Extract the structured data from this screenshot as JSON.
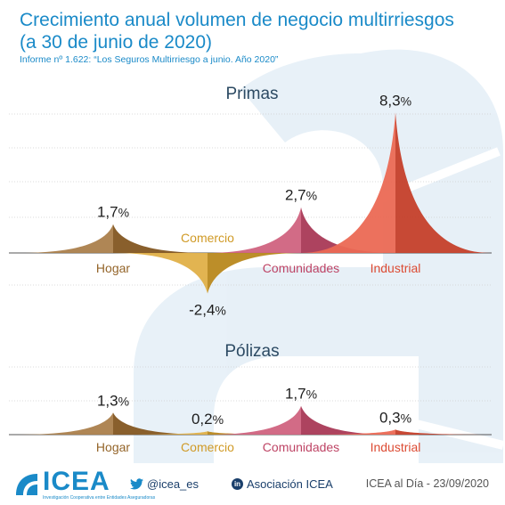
{
  "header": {
    "title_line1": "Crecimiento anual volumen de negocio multirriesgos",
    "title_line2": "(a 30 de junio de 2020)",
    "subtitle": "Informe nº 1.622: “Los Seguros Multirriesgo a junio. Año 2020”"
  },
  "chart_data": [
    {
      "type": "area",
      "title": "Primas",
      "unit": "%",
      "categories": [
        "Hogar",
        "Comercio",
        "Comunidades",
        "Industrial"
      ],
      "values": [
        1.7,
        -2.4,
        2.7,
        8.3
      ],
      "value_labels": [
        "1,7",
        "-2,4",
        "2,7",
        "8,3"
      ],
      "colors": [
        "#9c6a2c",
        "#dba228",
        "#c8486a",
        "#e84f36"
      ]
    },
    {
      "type": "area",
      "title": "Pólizas",
      "unit": "%",
      "categories": [
        "Hogar",
        "Comercio",
        "Comunidades",
        "Industrial"
      ],
      "values": [
        1.3,
        0.2,
        1.7,
        0.3
      ],
      "value_labels": [
        "1,3",
        "0,2",
        "1,7",
        "0,3"
      ],
      "colors": [
        "#9c6a2c",
        "#dba228",
        "#c8486a",
        "#e84f36"
      ]
    }
  ],
  "footer": {
    "logo": "ICEA",
    "logo_tagline": "Investigación Cooperativa entre Entidades Aseguradoras",
    "twitter": "@icea_es",
    "linkedin": "Asociación ICEA",
    "date": "ICEA al Día - 23/09/2020"
  }
}
